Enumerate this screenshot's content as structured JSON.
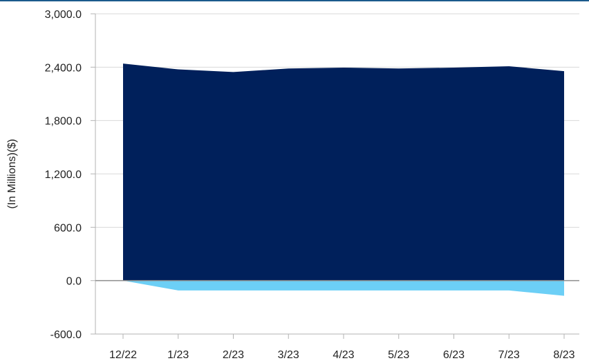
{
  "colors": {
    "top_rule": "#1b5a8c",
    "grid": "#d9d9d9",
    "axis": "#b3b3b3",
    "zero_line": "#8c8c8c",
    "text": "#222222"
  },
  "chart_data": {
    "type": "area",
    "title": "",
    "xlabel": "",
    "ylabel": "(In Millions)($)",
    "categories": [
      "12/22",
      "1/23",
      "2/23",
      "3/23",
      "4/23",
      "5/23",
      "6/23",
      "7/23",
      "8/23"
    ],
    "ylim": [
      -600,
      3000
    ],
    "yticks": [
      -600,
      0,
      600,
      1200,
      1800,
      2400,
      3000
    ],
    "ytick_labels": [
      "-600.0",
      "0.0",
      "600.0",
      "1,200.0",
      "1,800.0",
      "2,400.0",
      "3,000.0"
    ],
    "grid": true,
    "legend": "none",
    "series": [
      {
        "color": "#00205b",
        "values": [
          2440,
          2375,
          2345,
          2385,
          2395,
          2385,
          2395,
          2410,
          2355
        ]
      },
      {
        "color": "#6ccff6",
        "values": [
          0,
          -110,
          -110,
          -110,
          -110,
          -110,
          -110,
          -110,
          -170
        ]
      }
    ]
  }
}
